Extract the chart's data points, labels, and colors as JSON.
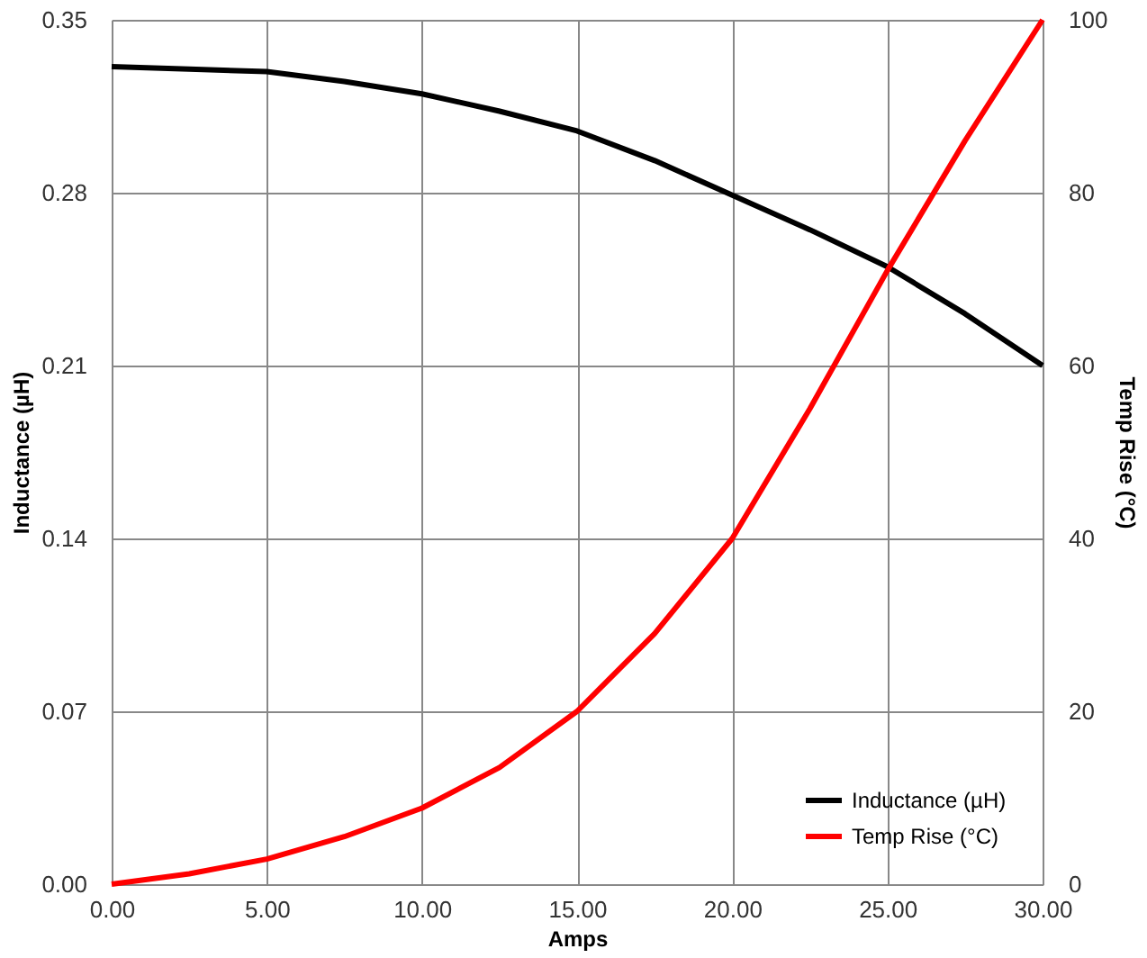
{
  "chart_data": {
    "type": "line",
    "xlabel": "Amps",
    "ylabel": "Inductance (µH)",
    "y2label": "Temp Rise (°C)",
    "x": [
      0,
      2.5,
      5,
      7.5,
      10,
      12.5,
      15,
      17.5,
      20,
      22.5,
      25,
      27.5,
      30
    ],
    "series": [
      {
        "name": "Inductance (µH)",
        "color": "#000000",
        "values": [
          0.331,
          0.33,
          0.329,
          0.325,
          0.32,
          0.313,
          0.305,
          0.293,
          0.279,
          0.265,
          0.25,
          0.231,
          0.21
        ]
      },
      {
        "name": "Temp Rise (°C)",
        "color": "#ff0000",
        "axis": "y2",
        "values": [
          0,
          1.2,
          2.9,
          5.5,
          8.8,
          13.5,
          20,
          29,
          40,
          55,
          71,
          86,
          100
        ]
      }
    ],
    "xlim": [
      0,
      30
    ],
    "xticks": [
      {
        "value": 0,
        "label": "0.00"
      },
      {
        "value": 5,
        "label": "5.00"
      },
      {
        "value": 10,
        "label": "10.00"
      },
      {
        "value": 15,
        "label": "15.00"
      },
      {
        "value": 20,
        "label": "20.00"
      },
      {
        "value": 25,
        "label": "25.00"
      },
      {
        "value": 30,
        "label": "30.00"
      }
    ],
    "ylim": [
      0,
      0.35
    ],
    "yticks": [
      {
        "value": 0,
        "label": "0.00"
      },
      0.07,
      0.14,
      0.21,
      0.28,
      0.35
    ],
    "y2lim": [
      0,
      100
    ],
    "y2ticks": [
      0,
      20,
      40,
      60,
      80,
      100
    ],
    "grid": true,
    "legend": "bottom right",
    "marker": "none",
    "line_style": "solid"
  }
}
